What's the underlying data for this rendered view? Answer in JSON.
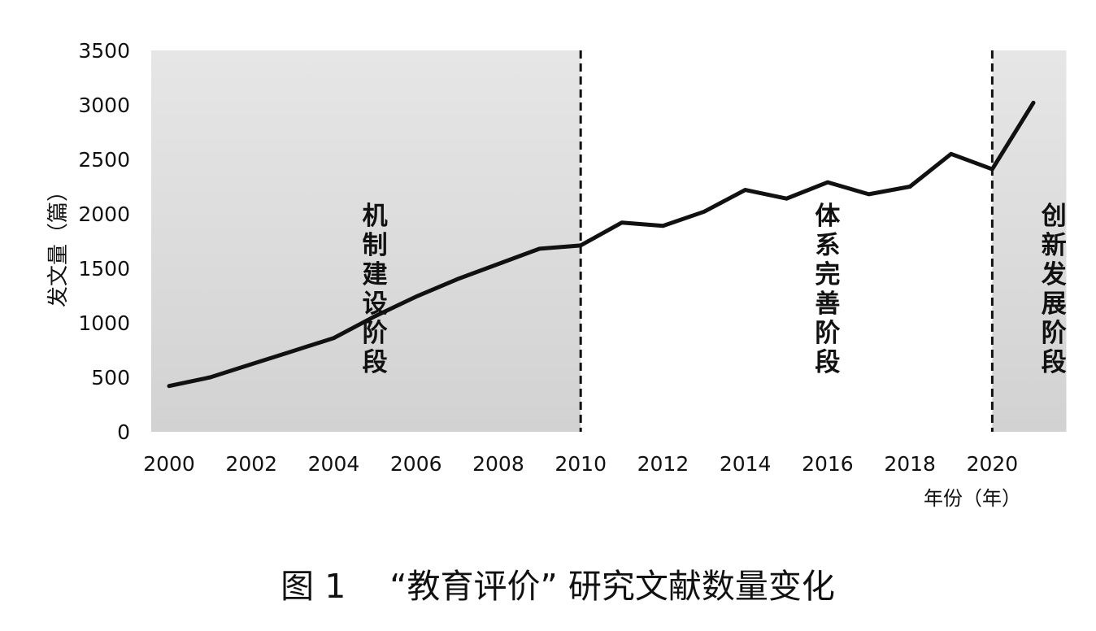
{
  "chart_data": {
    "type": "line",
    "title": "图 1　 “教育评价” 研究文献数量变化",
    "xlabel": "年份（年）",
    "ylabel": "发文量（篇）",
    "x": [
      2000,
      2001,
      2002,
      2003,
      2004,
      2005,
      2006,
      2007,
      2008,
      2009,
      2010,
      2011,
      2012,
      2013,
      2014,
      2015,
      2016,
      2017,
      2018,
      2019,
      2020,
      2021
    ],
    "series": [
      {
        "values": [
          420,
          500,
          620,
          740,
          860,
          1060,
          1240,
          1400,
          1540,
          1680,
          1710,
          1920,
          1890,
          2020,
          2220,
          2140,
          2290,
          2180,
          2250,
          2550,
          2410,
          3020
        ]
      }
    ],
    "xlim": [
      2000,
      2021.8
    ],
    "ylim": [
      0,
      3500
    ],
    "x_ticks": [
      2000,
      2002,
      2004,
      2006,
      2008,
      2010,
      2012,
      2014,
      2016,
      2018,
      2020
    ],
    "y_ticks": [
      0,
      500,
      1000,
      1500,
      2000,
      2500,
      3000,
      3500
    ],
    "grid": false,
    "phase_dividers": [
      2010,
      2020
    ],
    "phases": [
      {
        "label": "机制建设阶段",
        "x_range": [
          2000,
          2010
        ],
        "label_x": 2005,
        "shaded": true
      },
      {
        "label": "体系完善阶段",
        "x_range": [
          2010,
          2020
        ],
        "label_x": 2016,
        "shaded": false
      },
      {
        "label": "创新发展阶段",
        "x_range": [
          2020,
          2021.8
        ],
        "label_x": 2021.5,
        "shaded": true
      }
    ],
    "colors": {
      "line": "#111111",
      "shade": "#dcdcdc",
      "divider": "#111111"
    }
  }
}
